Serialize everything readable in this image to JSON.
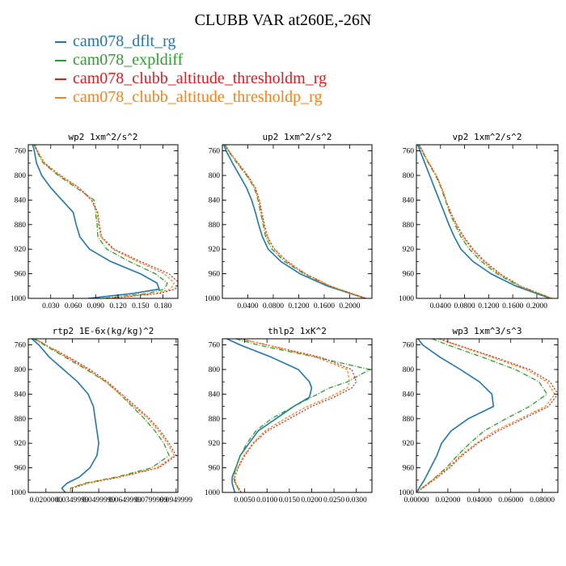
{
  "figure": {
    "title": "CLUBB VAR at260E,-26N"
  },
  "colors": {
    "dflt": "#1f77b4",
    "expldiff": "#2ca02c",
    "thresholdm": "#e4191c",
    "thresholdp": "#ff7f0e"
  },
  "legend": [
    {
      "label": "cam078_dflt_rg",
      "color": "#1f77b4"
    },
    {
      "label": "cam078_expldiff",
      "color": "#2ca02c"
    },
    {
      "label": "cam078_clubb_altitude_thresholdm_rg",
      "color": "#e4191c"
    },
    {
      "label": "cam078_clubb_altitude_thresholdp_rg",
      "color": "#ff7f0e"
    }
  ],
  "chart_data": [
    {
      "type": "line",
      "title": "wp2  1xm^2/s^2",
      "xlim": [
        0,
        0.2
      ],
      "ylim": [
        1000,
        750
      ],
      "xticks": [
        0.03,
        0.06,
        0.09,
        0.12,
        0.15,
        0.18
      ],
      "xtick_labels": [
        "0.030",
        "0.060",
        "0.090",
        "0.120",
        "0.150",
        "0.180"
      ],
      "yticks": [
        760,
        800,
        840,
        880,
        920,
        960,
        1000
      ],
      "ytick_labels": [
        "760",
        "800",
        "840",
        "880",
        "920",
        "960",
        "1000"
      ],
      "pressure": [
        750,
        760,
        780,
        800,
        820,
        840,
        860,
        880,
        900,
        920,
        940,
        960,
        975,
        985,
        992,
        1000
      ],
      "series": [
        {
          "name": "cam078_dflt_rg",
          "values": [
            0.006,
            0.008,
            0.011,
            0.018,
            0.03,
            0.045,
            0.06,
            0.064,
            0.069,
            0.082,
            0.11,
            0.15,
            0.172,
            0.175,
            0.14,
            0.08
          ]
        },
        {
          "name": "cam078_expldiff",
          "values": [
            0.008,
            0.011,
            0.02,
            0.04,
            0.064,
            0.088,
            0.09,
            0.092,
            0.093,
            0.105,
            0.135,
            0.17,
            0.186,
            0.182,
            0.16,
            0.1
          ]
        },
        {
          "name": "cam078_clubb_altitude_thresholdm_rg",
          "values": [
            0.009,
            0.012,
            0.022,
            0.043,
            0.068,
            0.085,
            0.093,
            0.095,
            0.098,
            0.115,
            0.15,
            0.188,
            0.202,
            0.196,
            0.175,
            0.11
          ]
        },
        {
          "name": "cam078_clubb_altitude_thresholdp_rg",
          "values": [
            0.009,
            0.012,
            0.021,
            0.042,
            0.067,
            0.084,
            0.092,
            0.094,
            0.097,
            0.113,
            0.146,
            0.182,
            0.195,
            0.19,
            0.17,
            0.105
          ]
        }
      ]
    },
    {
      "type": "line",
      "title": "up2  1xm^2/s^2",
      "xlim": [
        0.0,
        0.235
      ],
      "ylim": [
        1000,
        750
      ],
      "xticks": [
        0.04,
        0.08,
        0.12,
        0.16,
        0.2
      ],
      "xtick_labels": [
        "0.0400",
        "0.0800",
        "0.1200",
        "0.1600",
        "0.2000"
      ],
      "yticks": [
        760,
        800,
        840,
        880,
        920,
        960,
        1000
      ],
      "ytick_labels": [
        "760",
        "800",
        "840",
        "880",
        "920",
        "960",
        "1000"
      ],
      "pressure": [
        750,
        760,
        780,
        800,
        820,
        840,
        860,
        880,
        900,
        920,
        940,
        960,
        980,
        1000
      ],
      "series": [
        {
          "name": "cam078_dflt_rg",
          "values": [
            0.002,
            0.006,
            0.016,
            0.027,
            0.038,
            0.046,
            0.052,
            0.057,
            0.063,
            0.072,
            0.092,
            0.122,
            0.165,
            0.225
          ]
        },
        {
          "name": "cam078_expldiff",
          "values": [
            0.004,
            0.009,
            0.023,
            0.038,
            0.05,
            0.056,
            0.06,
            0.064,
            0.068,
            0.078,
            0.098,
            0.128,
            0.168,
            0.225
          ]
        },
        {
          "name": "cam078_clubb_altitude_thresholdm_rg",
          "values": [
            0.005,
            0.01,
            0.025,
            0.04,
            0.052,
            0.058,
            0.062,
            0.066,
            0.071,
            0.082,
            0.102,
            0.131,
            0.17,
            0.226
          ]
        },
        {
          "name": "cam078_clubb_altitude_thresholdp_rg",
          "values": [
            0.005,
            0.01,
            0.024,
            0.039,
            0.051,
            0.057,
            0.061,
            0.065,
            0.07,
            0.081,
            0.101,
            0.13,
            0.169,
            0.226
          ]
        }
      ]
    },
    {
      "type": "line",
      "title": "vp2  1xm^2/s^2",
      "xlim": [
        0.0,
        0.235
      ],
      "ylim": [
        1000,
        750
      ],
      "xticks": [
        0.04,
        0.08,
        0.12,
        0.16,
        0.2
      ],
      "xtick_labels": [
        "0.0400",
        "0.0800",
        "0.1200",
        "0.1600",
        "0.2000"
      ],
      "yticks": [
        760,
        800,
        840,
        880,
        920,
        960,
        1000
      ],
      "ytick_labels": [
        "760",
        "800",
        "840",
        "880",
        "920",
        "960",
        "1000"
      ],
      "pressure": [
        750,
        760,
        780,
        800,
        820,
        840,
        860,
        880,
        900,
        920,
        940,
        960,
        980,
        1000
      ],
      "series": [
        {
          "name": "cam078_dflt_rg",
          "values": [
            0.002,
            0.006,
            0.014,
            0.022,
            0.03,
            0.038,
            0.046,
            0.054,
            0.063,
            0.074,
            0.094,
            0.124,
            0.165,
            0.222
          ]
        },
        {
          "name": "cam078_expldiff",
          "values": [
            0.004,
            0.009,
            0.02,
            0.032,
            0.041,
            0.048,
            0.055,
            0.064,
            0.074,
            0.088,
            0.108,
            0.134,
            0.17,
            0.224
          ]
        },
        {
          "name": "cam078_clubb_altitude_thresholdm_rg",
          "values": [
            0.005,
            0.01,
            0.021,
            0.033,
            0.042,
            0.049,
            0.057,
            0.067,
            0.079,
            0.094,
            0.114,
            0.139,
            0.173,
            0.225
          ]
        },
        {
          "name": "cam078_clubb_altitude_thresholdp_rg",
          "values": [
            0.005,
            0.01,
            0.021,
            0.033,
            0.042,
            0.049,
            0.056,
            0.066,
            0.077,
            0.092,
            0.112,
            0.137,
            0.172,
            0.225
          ]
        }
      ]
    },
    {
      "type": "line",
      "title": "rtp2  1E-6x(kg/kg)^2",
      "xlim": [
        0.01,
        0.095
      ],
      "ylim": [
        1000,
        750
      ],
      "xticks": [
        0.02,
        0.035,
        0.05,
        0.065,
        0.08,
        0.094
      ],
      "xtick_labels": [
        "0.0200000",
        "0.0349999",
        "0.0499999",
        "0.0649999",
        "0.0799999",
        "0.0949999"
      ],
      "yticks": [
        760,
        800,
        840,
        880,
        920,
        960,
        1000
      ],
      "ytick_labels": [
        "760",
        "800",
        "840",
        "880",
        "920",
        "960",
        "1000"
      ],
      "pressure": [
        750,
        760,
        780,
        800,
        820,
        840,
        860,
        880,
        900,
        920,
        940,
        960,
        975,
        985,
        993,
        1000
      ],
      "series": [
        {
          "name": "cam078_dflt_rg",
          "values": [
            0.012,
            0.016,
            0.022,
            0.03,
            0.038,
            0.044,
            0.047,
            0.048,
            0.049,
            0.05,
            0.049,
            0.045,
            0.039,
            0.032,
            0.029,
            0.031
          ]
        },
        {
          "name": "cam078_expldiff",
          "values": [
            0.013,
            0.019,
            0.031,
            0.043,
            0.054,
            0.062,
            0.069,
            0.076,
            0.082,
            0.087,
            0.09,
            0.08,
            0.06,
            0.042,
            0.034,
            0.034
          ]
        },
        {
          "name": "cam078_clubb_altitude_thresholdm_rg",
          "values": [
            0.014,
            0.02,
            0.033,
            0.045,
            0.055,
            0.063,
            0.071,
            0.079,
            0.085,
            0.09,
            0.094,
            0.084,
            0.062,
            0.044,
            0.035,
            0.035
          ]
        },
        {
          "name": "cam078_clubb_altitude_thresholdp_rg",
          "values": [
            0.014,
            0.02,
            0.032,
            0.044,
            0.054,
            0.062,
            0.07,
            0.078,
            0.084,
            0.089,
            0.093,
            0.083,
            0.061,
            0.043,
            0.034,
            0.034
          ]
        }
      ]
    },
    {
      "type": "line",
      "title": "thlp2  1xK^2",
      "xlim": [
        0.0,
        0.0335
      ],
      "ylim": [
        1000,
        750
      ],
      "xticks": [
        0.005,
        0.01,
        0.015,
        0.02,
        0.025,
        0.03
      ],
      "xtick_labels": [
        "0.0050",
        "0.0100",
        "0.0150",
        "0.0200",
        "0.0250",
        "0.0300"
      ],
      "yticks": [
        760,
        800,
        840,
        880,
        920,
        960,
        1000
      ],
      "ytick_labels": [
        "760",
        "800",
        "840",
        "880",
        "920",
        "960",
        "1000"
      ],
      "pressure": [
        750,
        760,
        780,
        800,
        820,
        830,
        845,
        860,
        880,
        900,
        920,
        940,
        960,
        975,
        985,
        993,
        1000
      ],
      "series": [
        {
          "name": "cam078_dflt_rg",
          "values": [
            0.001,
            0.004,
            0.011,
            0.017,
            0.0195,
            0.02,
            0.0195,
            0.016,
            0.012,
            0.008,
            0.006,
            0.004,
            0.003,
            0.0022,
            0.0022,
            0.0025,
            0.0028
          ]
        },
        {
          "name": "cam078_expldiff",
          "values": [
            0.003,
            0.008,
            0.021,
            0.033,
            0.028,
            0.024,
            0.02,
            0.016,
            0.011,
            0.0075,
            0.0055,
            0.004,
            0.003,
            0.0025,
            0.0028,
            0.0035,
            0.004
          ]
        },
        {
          "name": "cam078_clubb_altitude_thresholdm_rg",
          "values": [
            0.004,
            0.01,
            0.022,
            0.029,
            0.03,
            0.029,
            0.025,
            0.02,
            0.015,
            0.01,
            0.007,
            0.005,
            0.0035,
            0.0028,
            0.003,
            0.0037,
            0.0042
          ]
        },
        {
          "name": "cam078_clubb_altitude_thresholdp_rg",
          "values": [
            0.004,
            0.01,
            0.021,
            0.028,
            0.0285,
            0.028,
            0.024,
            0.019,
            0.014,
            0.0095,
            0.0068,
            0.0048,
            0.0034,
            0.0027,
            0.0029,
            0.0036,
            0.0041
          ]
        }
      ]
    },
    {
      "type": "line",
      "title": "wp3  1xm^3/s^3",
      "xlim": [
        0.0,
        0.09
      ],
      "ylim": [
        1000,
        750
      ],
      "xticks": [
        0.0,
        0.02,
        0.04,
        0.06,
        0.08
      ],
      "xtick_labels": [
        "0.00000",
        "0.02000",
        "0.04000",
        "0.06000",
        "0.08000"
      ],
      "yticks": [
        760,
        800,
        840,
        880,
        920,
        960,
        1000
      ],
      "ytick_labels": [
        "760",
        "800",
        "840",
        "880",
        "920",
        "960",
        "1000"
      ],
      "pressure": [
        750,
        760,
        780,
        800,
        820,
        840,
        860,
        880,
        900,
        920,
        940,
        960,
        980,
        1000
      ],
      "series": [
        {
          "name": "cam078_dflt_rg",
          "values": [
            0.001,
            0.004,
            0.015,
            0.028,
            0.04,
            0.048,
            0.049,
            0.033,
            0.022,
            0.016,
            0.013,
            0.009,
            0.005,
            0.0
          ]
        },
        {
          "name": "cam078_expldiff",
          "values": [
            0.01,
            0.02,
            0.042,
            0.063,
            0.078,
            0.083,
            0.072,
            0.057,
            0.043,
            0.034,
            0.026,
            0.019,
            0.01,
            0.0
          ]
        },
        {
          "name": "cam078_clubb_altitude_thresholdm_rg",
          "values": [
            0.015,
            0.026,
            0.05,
            0.072,
            0.085,
            0.09,
            0.084,
            0.068,
            0.052,
            0.039,
            0.029,
            0.021,
            0.011,
            0.0
          ]
        },
        {
          "name": "cam078_clubb_altitude_thresholdp_rg",
          "values": [
            0.014,
            0.025,
            0.048,
            0.07,
            0.083,
            0.088,
            0.082,
            0.066,
            0.05,
            0.038,
            0.028,
            0.02,
            0.01,
            0.0
          ]
        }
      ]
    }
  ]
}
